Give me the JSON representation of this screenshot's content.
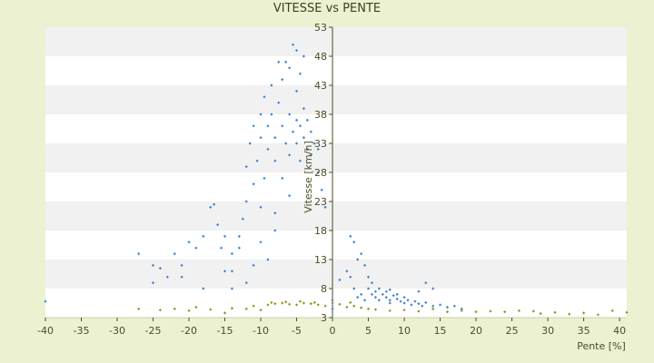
{
  "chart_data": {
    "type": "scatter",
    "title": "VITESSE vs PENTE",
    "xlabel": "Pente [%]",
    "ylabel": "Vitesse [km/h]",
    "xlim": [
      -40,
      41
    ],
    "ylim": [
      3,
      53
    ],
    "xticks": [
      -40,
      -35,
      -30,
      -25,
      -20,
      -15,
      -10,
      -5,
      0,
      5,
      10,
      15,
      20,
      25,
      30,
      35,
      40
    ],
    "yticks": [
      3,
      8,
      13,
      18,
      23,
      28,
      33,
      38,
      43,
      48,
      53
    ],
    "grid": "horizontal alternating bands",
    "legend": "none",
    "colors": {
      "background": "#ebf1d1",
      "band_white": "#ffffff",
      "band_grey": "#f1f1f1",
      "series_blue": "#3d85d0",
      "series_olive": "#9a8f1e",
      "axis": "#4d4d26"
    },
    "series": [
      {
        "color": "#3d85d0",
        "points": [
          [
            -40,
            5.8
          ],
          [
            -27,
            14
          ],
          [
            -25,
            12
          ],
          [
            -24,
            11.5
          ],
          [
            -23,
            10
          ],
          [
            -22,
            14
          ],
          [
            -21,
            12
          ],
          [
            -20,
            16
          ],
          [
            -19,
            15
          ],
          [
            -18,
            17
          ],
          [
            -17,
            22
          ],
          [
            -16.5,
            22.5
          ],
          [
            -16,
            19
          ],
          [
            -15.5,
            15
          ],
          [
            -15,
            17
          ],
          [
            -14,
            14
          ],
          [
            -14,
            11
          ],
          [
            -13,
            17
          ],
          [
            -13,
            15
          ],
          [
            -12.5,
            20
          ],
          [
            -12,
            23
          ],
          [
            -12,
            29
          ],
          [
            -11.5,
            33
          ],
          [
            -11,
            36
          ],
          [
            -11,
            26
          ],
          [
            -10.5,
            30
          ],
          [
            -10,
            38
          ],
          [
            -10,
            34
          ],
          [
            -10,
            22
          ],
          [
            -9.5,
            41
          ],
          [
            -9.5,
            27
          ],
          [
            -9,
            36
          ],
          [
            -9,
            32
          ],
          [
            -8.5,
            43
          ],
          [
            -8.5,
            38
          ],
          [
            -8,
            34
          ],
          [
            -8,
            30
          ],
          [
            -8,
            18
          ],
          [
            -7.5,
            47
          ],
          [
            -7.5,
            40
          ],
          [
            -7,
            44
          ],
          [
            -7,
            36
          ],
          [
            -7,
            27
          ],
          [
            -6.5,
            47
          ],
          [
            -6.5,
            33
          ],
          [
            -6,
            46
          ],
          [
            -6,
            38
          ],
          [
            -6,
            31
          ],
          [
            -5.5,
            50
          ],
          [
            -5.5,
            35
          ],
          [
            -5,
            49
          ],
          [
            -5,
            42
          ],
          [
            -5,
            37
          ],
          [
            -5,
            33
          ],
          [
            -4.5,
            45
          ],
          [
            -4.5,
            36
          ],
          [
            -4.5,
            30
          ],
          [
            -4,
            48
          ],
          [
            -4,
            39
          ],
          [
            -4,
            34
          ],
          [
            -3.5,
            37
          ],
          [
            -3.5,
            32
          ],
          [
            -3,
            35
          ],
          [
            -3,
            31
          ],
          [
            -2.5,
            33
          ],
          [
            -2,
            32
          ],
          [
            -2,
            28
          ],
          [
            -1.5,
            25
          ],
          [
            -1,
            22
          ],
          [
            -9,
            13
          ],
          [
            -10,
            16
          ],
          [
            -8,
            21
          ],
          [
            -6,
            24
          ],
          [
            -15,
            11
          ],
          [
            -12,
            9
          ],
          [
            -21,
            10
          ],
          [
            -18,
            8
          ],
          [
            -25,
            9
          ],
          [
            -14,
            8
          ],
          [
            -11,
            12
          ],
          [
            2.5,
            17
          ],
          [
            3,
            16
          ],
          [
            3.5,
            13
          ],
          [
            4,
            14
          ],
          [
            4.5,
            12
          ],
          [
            5,
            10
          ],
          [
            5,
            8
          ],
          [
            5.5,
            9
          ],
          [
            6,
            7.5
          ],
          [
            6,
            6.5
          ],
          [
            6.5,
            8
          ],
          [
            7,
            7
          ],
          [
            7.5,
            6.5
          ],
          [
            8,
            7.8
          ],
          [
            8,
            6
          ],
          [
            8.5,
            6.8
          ],
          [
            9,
            6.2
          ],
          [
            9.5,
            5.8
          ],
          [
            10,
            6.5
          ],
          [
            10,
            5.5
          ],
          [
            10.5,
            6
          ],
          [
            11,
            5.2
          ],
          [
            11.5,
            5.8
          ],
          [
            12,
            5.4
          ],
          [
            12.5,
            5
          ],
          [
            13,
            5.6
          ],
          [
            14,
            5
          ],
          [
            15,
            5.2
          ],
          [
            16,
            4.8
          ],
          [
            17,
            5
          ],
          [
            18,
            4.5
          ],
          [
            4,
            7
          ],
          [
            4.5,
            6
          ],
          [
            5.5,
            7
          ],
          [
            6.5,
            6
          ],
          [
            7.5,
            7.5
          ],
          [
            9,
            7
          ],
          [
            3,
            8
          ],
          [
            3.5,
            6.5
          ],
          [
            8,
            5.5
          ],
          [
            12,
            7.5
          ],
          [
            13,
            9
          ],
          [
            14,
            8
          ],
          [
            0,
            6
          ],
          [
            0,
            4.5
          ],
          [
            1,
            9.5
          ],
          [
            2,
            11
          ],
          [
            2.5,
            10
          ]
        ]
      },
      {
        "color": "#9a8f1e",
        "points": [
          [
            -27,
            4.5
          ],
          [
            -24,
            4.3
          ],
          [
            -22,
            4.5
          ],
          [
            -20,
            4.2
          ],
          [
            -19,
            4.8
          ],
          [
            -17,
            4.4
          ],
          [
            -15,
            3.8
          ],
          [
            -14,
            4.6
          ],
          [
            -12,
            4.5
          ],
          [
            -11,
            5
          ],
          [
            -10,
            4.3
          ],
          [
            -9,
            5.2
          ],
          [
            -8,
            5.4
          ],
          [
            -7,
            5.5
          ],
          [
            -6,
            5.3
          ],
          [
            -5,
            5.2
          ],
          [
            -4,
            5.5
          ],
          [
            -3,
            5.4
          ],
          [
            -2,
            5.2
          ],
          [
            -1,
            5
          ],
          [
            0,
            5.5
          ],
          [
            1,
            5.3
          ],
          [
            2,
            4.8
          ],
          [
            3,
            5
          ],
          [
            4,
            4.7
          ],
          [
            5,
            4.5
          ],
          [
            6,
            4.4
          ],
          [
            8,
            4.2
          ],
          [
            10,
            4.3
          ],
          [
            12,
            4.1
          ],
          [
            14,
            4.5
          ],
          [
            16,
            4
          ],
          [
            18,
            4.2
          ],
          [
            20,
            4
          ],
          [
            22,
            4.1
          ],
          [
            24,
            4
          ],
          [
            26,
            4.2
          ],
          [
            28,
            4.1
          ],
          [
            29,
            3.7
          ],
          [
            31,
            3.9
          ],
          [
            33,
            3.6
          ],
          [
            35,
            3.8
          ],
          [
            37,
            3.5
          ],
          [
            39,
            4.2
          ],
          [
            41,
            3.9
          ],
          [
            -8.5,
            5.6
          ],
          [
            -6.5,
            5.7
          ],
          [
            -4.5,
            5.8
          ],
          [
            -2.5,
            5.6
          ],
          [
            2.5,
            5.6
          ]
        ]
      }
    ]
  }
}
